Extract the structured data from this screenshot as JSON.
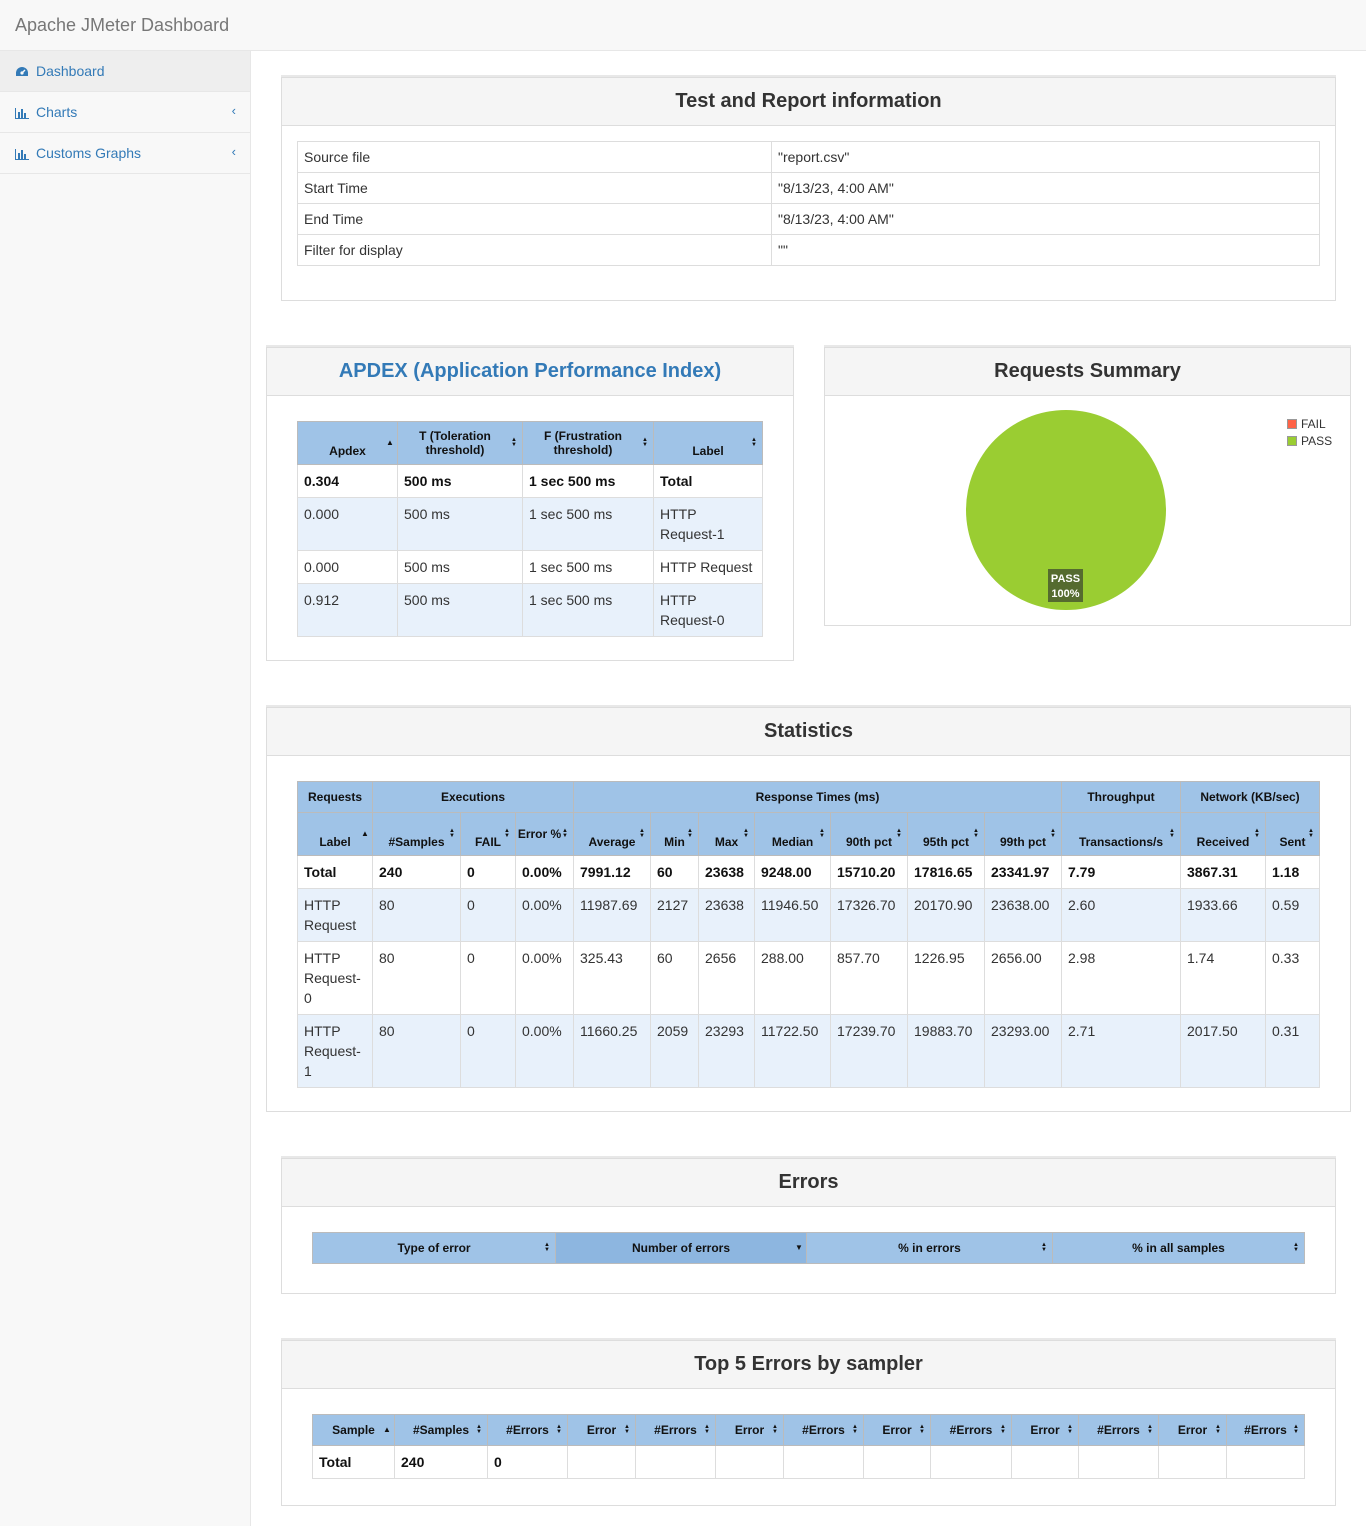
{
  "app": {
    "title": "Apache JMeter Dashboard"
  },
  "sidebar": {
    "items": [
      {
        "label": "Dashboard",
        "icon": "dashboard-icon"
      },
      {
        "label": "Charts",
        "icon": "bar-chart-icon"
      },
      {
        "label": "Customs Graphs",
        "icon": "bar-chart-icon"
      }
    ]
  },
  "test_info": {
    "title": "Test and Report information",
    "rows": [
      {
        "key": "Source file",
        "value": "\"report.csv\""
      },
      {
        "key": "Start Time",
        "value": "\"8/13/23, 4:00 AM\""
      },
      {
        "key": "End Time",
        "value": "\"8/13/23, 4:00 AM\""
      },
      {
        "key": "Filter for display",
        "value": "\"\""
      }
    ]
  },
  "apdex": {
    "title": "APDEX (Application Performance Index)",
    "headers": [
      "Apdex",
      "T (Toleration threshold)",
      "F (Frustration threshold)",
      "Label"
    ],
    "rows": [
      {
        "apdex": "0.304",
        "t": "500 ms",
        "f": "1 sec 500 ms",
        "label": "Total"
      },
      {
        "apdex": "0.000",
        "t": "500 ms",
        "f": "1 sec 500 ms",
        "label": "HTTP Request-1"
      },
      {
        "apdex": "0.000",
        "t": "500 ms",
        "f": "1 sec 500 ms",
        "label": "HTTP Request"
      },
      {
        "apdex": "0.912",
        "t": "500 ms",
        "f": "1 sec 500 ms",
        "label": "HTTP Request-0"
      }
    ]
  },
  "requests_summary": {
    "title": "Requests Summary",
    "legend": [
      {
        "label": "FAIL",
        "color": "#ff6347"
      },
      {
        "label": "PASS",
        "color": "#9acd32"
      }
    ],
    "slice_label": "PASS",
    "slice_pct_label": "100%",
    "chart_data": {
      "type": "pie",
      "categories": [
        "FAIL",
        "PASS"
      ],
      "values": [
        0,
        100
      ]
    }
  },
  "statistics": {
    "title": "Statistics",
    "groups": [
      "Requests",
      "Executions",
      "Response Times (ms)",
      "Throughput",
      "Network (KB/sec)"
    ],
    "headers": [
      "Label",
      "#Samples",
      "FAIL",
      "Error %",
      "Average",
      "Min",
      "Max",
      "Median",
      "90th pct",
      "95th pct",
      "99th pct",
      "Transactions/s",
      "Received",
      "Sent"
    ],
    "rows": [
      [
        "Total",
        "240",
        "0",
        "0.00%",
        "7991.12",
        "60",
        "23638",
        "9248.00",
        "15710.20",
        "17816.65",
        "23341.97",
        "7.79",
        "3867.31",
        "1.18"
      ],
      [
        "HTTP Request",
        "80",
        "0",
        "0.00%",
        "11987.69",
        "2127",
        "23638",
        "11946.50",
        "17326.70",
        "20170.90",
        "23638.00",
        "2.60",
        "1933.66",
        "0.59"
      ],
      [
        "HTTP Request-0",
        "80",
        "0",
        "0.00%",
        "325.43",
        "60",
        "2656",
        "288.00",
        "857.70",
        "1226.95",
        "2656.00",
        "2.98",
        "1.74",
        "0.33"
      ],
      [
        "HTTP Request-1",
        "80",
        "0",
        "0.00%",
        "11660.25",
        "2059",
        "23293",
        "11722.50",
        "17239.70",
        "19883.70",
        "23293.00",
        "2.71",
        "2017.50",
        "0.31"
      ]
    ]
  },
  "errors": {
    "title": "Errors",
    "headers": [
      "Type of error",
      "Number of errors",
      "% in errors",
      "% in all samples"
    ]
  },
  "top5": {
    "title": "Top 5 Errors by sampler",
    "headers": [
      "Sample",
      "#Samples",
      "#Errors",
      "Error",
      "#Errors",
      "Error",
      "#Errors",
      "Error",
      "#Errors",
      "Error",
      "#Errors",
      "Error",
      "#Errors"
    ],
    "rows": [
      [
        "Total",
        "240",
        "0",
        "",
        "",
        "",
        "",
        "",
        "",
        "",
        "",
        "",
        ""
      ]
    ]
  }
}
